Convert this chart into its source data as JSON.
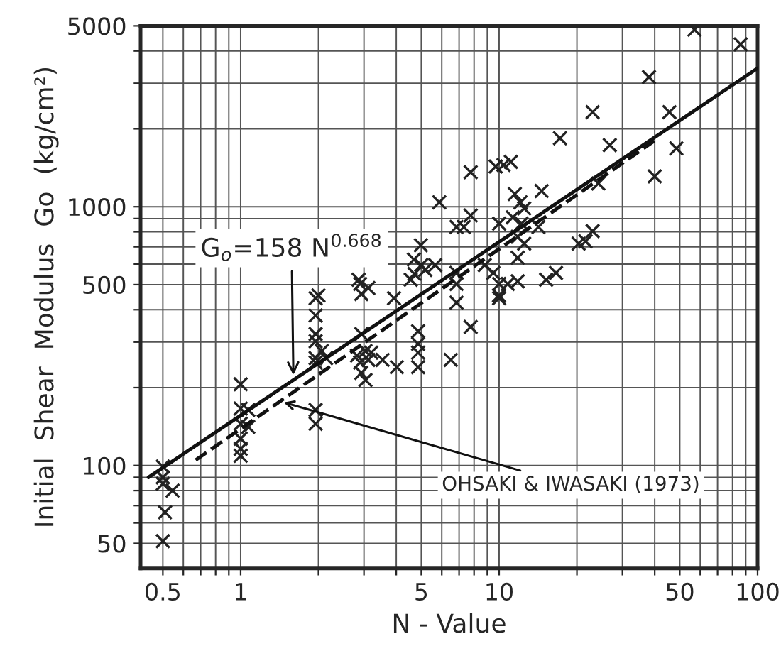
{
  "chart_data": {
    "type": "scatter",
    "xlabel": "N - Value",
    "ylabel": "Initial  Shear  Modulus  Go  (kg/cm²)",
    "log": "xy",
    "grid": true,
    "legend": false,
    "xlim": [
      0.41,
      100
    ],
    "ylim": [
      40,
      5000
    ],
    "xticks": [
      0.5,
      {
        "value": 0.6,
        "label": null
      },
      {
        "value": 0.7,
        "label": null
      },
      {
        "value": 0.8,
        "label": null
      },
      {
        "value": 0.9,
        "label": null
      },
      1,
      {
        "value": 2,
        "label": null
      },
      {
        "value": 3,
        "label": null
      },
      {
        "value": 4,
        "label": null
      },
      5,
      {
        "value": 6,
        "label": null
      },
      {
        "value": 7,
        "label": null
      },
      {
        "value": 8,
        "label": null
      },
      {
        "value": 9,
        "label": null
      },
      10,
      {
        "value": 20,
        "label": null
      },
      {
        "value": 30,
        "label": null
      },
      {
        "value": 40,
        "label": null
      },
      50,
      {
        "value": 60,
        "label": null
      },
      {
        "value": 70,
        "label": null
      },
      {
        "value": 80,
        "label": null
      },
      {
        "value": 90,
        "label": null
      },
      100
    ],
    "yticks": [
      50,
      {
        "value": 60,
        "label": null
      },
      {
        "value": 70,
        "label": null
      },
      {
        "value": 80,
        "label": null
      },
      {
        "value": 90,
        "label": null
      },
      100,
      {
        "value": 200,
        "label": null
      },
      {
        "value": 300,
        "label": null
      },
      {
        "value": 400,
        "label": null
      },
      500,
      {
        "value": 600,
        "label": null
      },
      {
        "value": 700,
        "label": null
      },
      {
        "value": 800,
        "label": null
      },
      {
        "value": 900,
        "label": null
      },
      1000,
      {
        "value": 2000,
        "label": null
      },
      {
        "value": 3000,
        "label": null
      },
      {
        "value": 4000,
        "label": null
      },
      5000
    ],
    "series": [
      {
        "color": "#222222",
        "marker": "cross",
        "x": [
          0.5,
          0.5,
          0.5,
          0.545,
          0.51,
          0.5,
          1.0,
          1.0,
          1.07,
          1.0,
          1.07,
          1.0,
          1.0,
          1.0,
          1.95,
          1.95,
          1.95,
          1.95,
          2.06,
          1.95,
          2.14,
          1.95,
          1.95,
          1.95,
          2.0,
          2.93,
          2.82,
          3.04,
          3.2,
          2.9,
          3.12,
          3.54,
          2.93,
          3.04,
          4.02,
          3.92,
          2.86,
          2.9,
          3.12,
          2.93,
          4.86,
          4.86,
          4.86,
          4.86,
          6.84,
          7.76,
          6.5,
          9.99,
          57,
          86,
          38,
          23,
          45.6,
          17.2,
          26.8,
          48.5,
          40,
          24.2,
          7.76,
          9.7,
          10.4,
          11.1,
          5.87,
          14.6,
          11.5,
          12.1,
          12.5,
          6.84,
          7.3,
          7.76,
          10,
          11.3,
          12.2,
          14.2,
          11.8,
          12.5,
          11.8,
          8.8,
          9.5,
          10,
          10.8,
          11.8,
          10,
          15.2,
          16.6,
          20.3,
          21.6,
          23,
          6.84,
          6.84,
          4.98,
          4.68,
          5.0,
          4.7,
          5.18,
          4.55,
          5.66
        ],
        "values": [
          99,
          90,
          85,
          80,
          66,
          51,
          206,
          166,
          164,
          145,
          141,
          127,
          116,
          109,
          443,
          380,
          322,
          302,
          277,
          260,
          260,
          250,
          164,
          145,
          454,
          322,
          266,
          277,
          273,
          250,
          256,
          256,
          228,
          214,
          240,
          443,
          522,
          503,
          485,
          460,
          330,
          295,
          273,
          240,
          426,
          343,
          256,
          454,
          4830,
          4240,
          3170,
          2320,
          2320,
          1840,
          1730,
          1680,
          1310,
          1230,
          1360,
          1430,
          1450,
          1490,
          1040,
          1150,
          1120,
          1040,
          985,
          835,
          835,
          925,
          860,
          910,
          860,
          835,
          765,
          720,
          635,
          595,
          555,
          503,
          503,
          515,
          443,
          522,
          555,
          720,
          735,
          805,
          503,
          555,
          710,
          625,
          595,
          550,
          570,
          522,
          595
        ]
      },
      {
        "type": "line",
        "color": "#111111",
        "line_style": "solid",
        "x": [
          0.44,
          100
        ],
        "values": [
          90,
          3430
        ]
      },
      {
        "type": "line",
        "color": "#111111",
        "line_style": "dashed",
        "x": [
          0.67,
          40
        ],
        "values": [
          105,
          1800
        ]
      }
    ],
    "annotations": [
      {
        "text": "G$_{o}$=158 N$^{0.668}$",
        "x": 1.6,
        "y": 216
      },
      {
        "text": "OHSAKI & IWASAKI (1973)",
        "x": 1.42,
        "y": 177
      }
    ]
  }
}
